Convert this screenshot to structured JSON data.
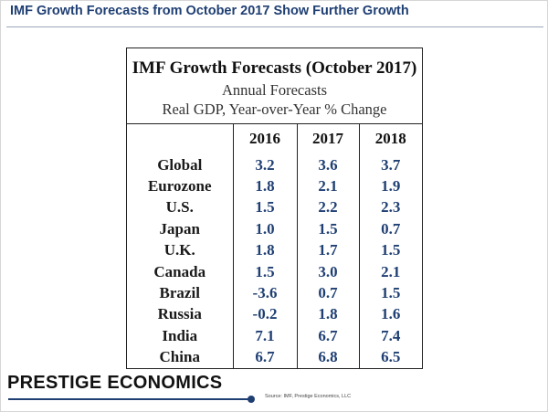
{
  "slide": {
    "title": "IMF Growth Forecasts from October 2017 Show Further Growth",
    "accent_color": "#1f3f73"
  },
  "table": {
    "title": "IMF Growth Forecasts (October 2017)",
    "subtitle1": "Annual Forecasts",
    "subtitle2": "Real GDP, Year-over-Year % Change",
    "columns": [
      "",
      "2016",
      "2017",
      "2018"
    ],
    "rows": [
      {
        "country": "Global",
        "values": [
          "3.2",
          "3.6",
          "3.7"
        ]
      },
      {
        "country": "Eurozone",
        "values": [
          "1.8",
          "2.1",
          "1.9"
        ]
      },
      {
        "country": "U.S.",
        "values": [
          "1.5",
          "2.2",
          "2.3"
        ]
      },
      {
        "country": "Japan",
        "values": [
          "1.0",
          "1.5",
          "0.7"
        ]
      },
      {
        "country": "U.K.",
        "values": [
          "1.8",
          "1.7",
          "1.5"
        ]
      },
      {
        "country": "Canada",
        "values": [
          "1.5",
          "3.0",
          "2.1"
        ]
      },
      {
        "country": "Brazil",
        "values": [
          "-3.6",
          "0.7",
          "1.5"
        ]
      },
      {
        "country": "Russia",
        "values": [
          "-0.2",
          "1.8",
          "1.6"
        ]
      },
      {
        "country": "India",
        "values": [
          "7.1",
          "6.7",
          "7.4"
        ]
      },
      {
        "country": "China",
        "values": [
          "6.7",
          "6.8",
          "6.5"
        ]
      }
    ]
  },
  "footer": {
    "logo": "PRESTIGE ECONOMICS",
    "source": "Source: IMF, Prestige Economics, LLC"
  }
}
